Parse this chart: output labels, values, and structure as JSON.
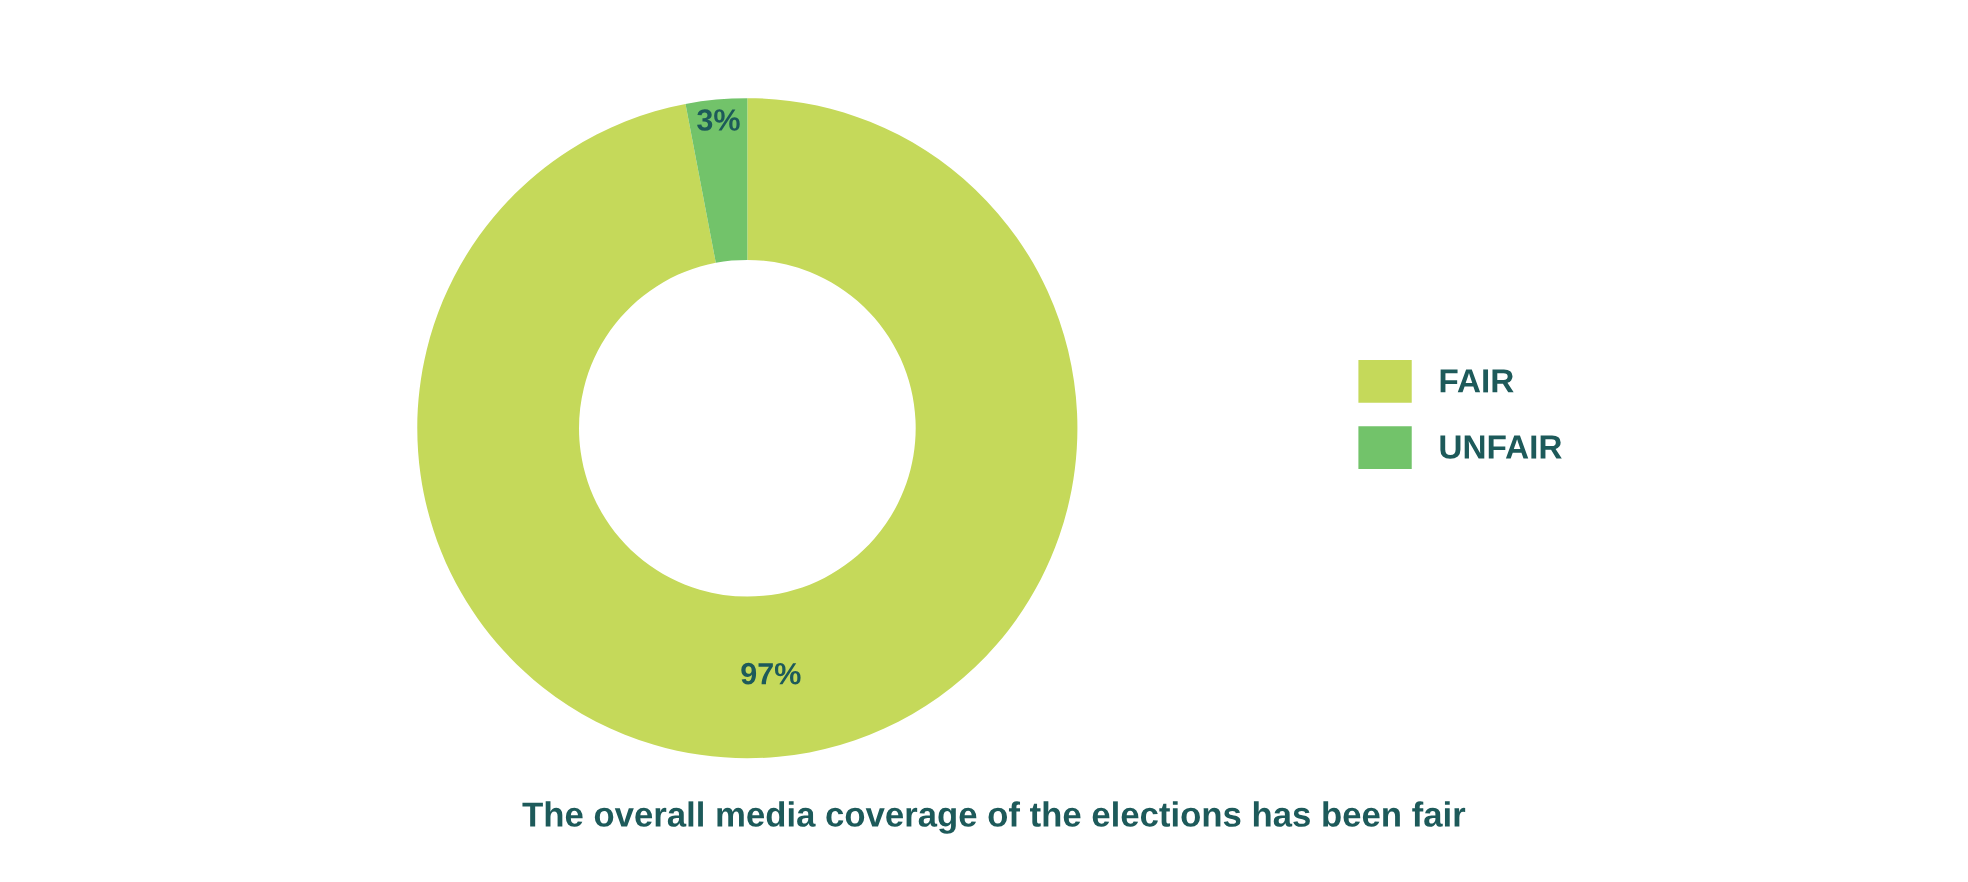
{
  "chart_data": {
    "type": "donut",
    "title": "The overall media coverage of the elections has been fair",
    "categories": [
      "FAIR",
      "UNFAIR"
    ],
    "values": [
      97,
      3
    ],
    "colors": [
      "#c5d95a",
      "#72c36a"
    ],
    "value_labels": [
      "97%",
      "3%"
    ],
    "legend": "right"
  }
}
